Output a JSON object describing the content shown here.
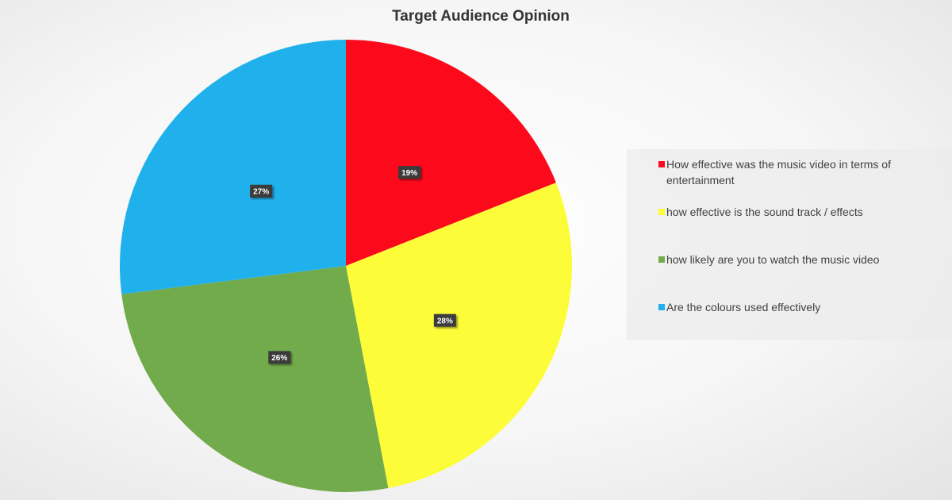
{
  "chart_data": {
    "type": "pie",
    "title": "Target Audience Opinion",
    "categories": [
      "How effective was the music video in terms of entertainment",
      "how effective is the sound track / effects",
      "how likely are you to watch the music video",
      "Are the colours used effectively"
    ],
    "values": [
      19,
      28,
      26,
      27
    ],
    "value_labels": [
      "19%",
      "28%",
      "26%",
      "27%"
    ],
    "colors": [
      "#fc0a1c",
      "#fcfc38",
      "#72ab4c",
      "#20b0ec"
    ],
    "legend": "right"
  }
}
